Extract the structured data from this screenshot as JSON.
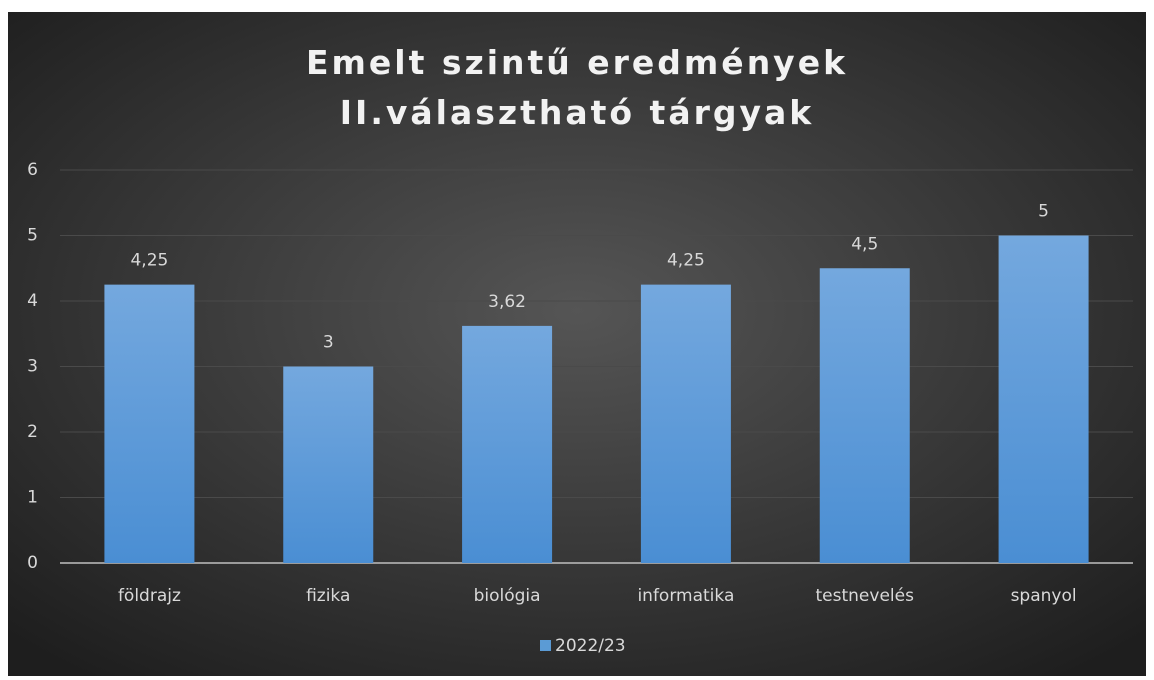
{
  "chart_data": {
    "type": "bar",
    "title": "Emelt szintű eredmények II.választható tárgyak",
    "categories": [
      "földrajz",
      "fizika",
      "biológia",
      "informatika",
      "testnevelés",
      "spanyol"
    ],
    "series": [
      {
        "name": "2022/23",
        "color": "#5b9bd5",
        "values": [
          4.25,
          3,
          3.62,
          4.25,
          4.5,
          5
        ],
        "value_labels": [
          "4,25",
          "3",
          "3,62",
          "4,25",
          "4,5",
          "5"
        ]
      }
    ],
    "ylim": [
      0,
      6
    ],
    "yticks": [
      0,
      1,
      2,
      3,
      4,
      5,
      6
    ],
    "grid": true,
    "legend": "bottom"
  }
}
